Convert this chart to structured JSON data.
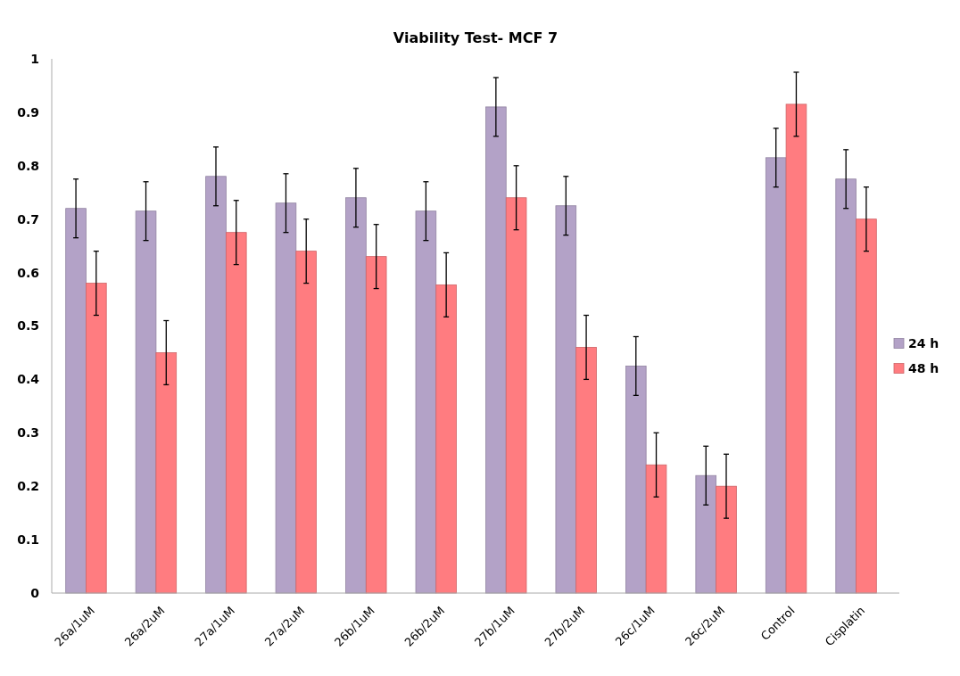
{
  "chart_data": {
    "type": "bar",
    "title": "Viability Test- MCF 7",
    "categories": [
      "26a/1uM",
      "26a/2uM",
      "27a/1uM",
      "27a/2uM",
      "26b/1uM",
      "26b/2uM",
      "27b/1uM",
      "27b/2uM",
      "26c/1uM",
      "26c/2uM",
      "Control",
      "Cisplatin"
    ],
    "series": [
      {
        "name": "24 h",
        "color": "#b3a2c7",
        "values": [
          0.72,
          0.715,
          0.78,
          0.73,
          0.74,
          0.715,
          0.91,
          0.725,
          0.425,
          0.22,
          0.815,
          0.775
        ],
        "errors": [
          0.055,
          0.055,
          0.055,
          0.055,
          0.055,
          0.055,
          0.055,
          0.055,
          0.055,
          0.055,
          0.055,
          0.055
        ]
      },
      {
        "name": "48 h",
        "color": "#ff7c80",
        "values": [
          0.58,
          0.45,
          0.675,
          0.64,
          0.63,
          0.577,
          0.74,
          0.46,
          0.24,
          0.2,
          0.915,
          0.7
        ],
        "errors": [
          0.06,
          0.06,
          0.06,
          0.06,
          0.06,
          0.06,
          0.06,
          0.06,
          0.06,
          0.06,
          0.06,
          0.06
        ]
      }
    ],
    "ylim": [
      0,
      1
    ],
    "yticks": [
      0,
      0.1,
      0.2,
      0.3,
      0.4,
      0.5,
      0.6,
      0.7,
      0.8,
      0.9,
      1
    ],
    "grid": false,
    "legend": "right"
  }
}
